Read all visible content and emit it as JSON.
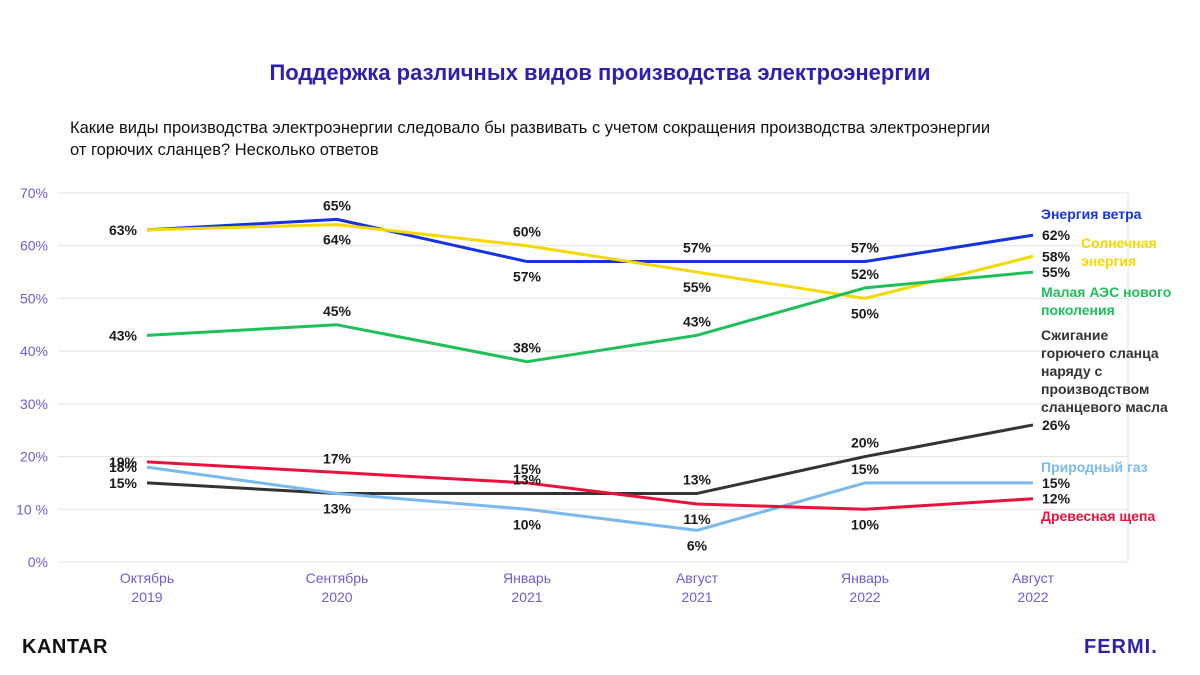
{
  "title": "Поддержка различных видов производства электроэнергии",
  "question_line1": "Какие виды производства электроэнергии следовало бы развивать с учетом сокращения производства электроэнергии",
  "question_line2": "от горючих сланцев?  Несколько ответов",
  "brands": {
    "left": "KANTAR",
    "right": "FERMI."
  },
  "chart_data": {
    "type": "line",
    "categories": [
      [
        "Октябрь",
        "2019"
      ],
      [
        "Сентябрь",
        "2020"
      ],
      [
        "Январь",
        "2021"
      ],
      [
        "Август",
        "2021"
      ],
      [
        "Январь",
        "2022"
      ],
      [
        "Август",
        "2022"
      ]
    ],
    "ylim": [
      0,
      70
    ],
    "yticks": [
      "0%",
      "10 %",
      "20%",
      "30%",
      "40%",
      "50%",
      "60%",
      "70%"
    ],
    "grid": true,
    "legend_placement": "right",
    "series": [
      {
        "name": "Энергия ветра",
        "color": "#1533e0",
        "values": [
          63,
          65,
          57,
          57,
          57,
          62
        ],
        "labels": [
          "63%",
          "65%",
          "57%",
          "57%",
          "57%",
          "62%"
        ],
        "label_pos": [
          "left",
          "above",
          "below",
          "above",
          "above",
          "end"
        ],
        "legend": [
          "Энергия ветра"
        ]
      },
      {
        "name": "Солнечная энергия",
        "color": "#f5d800",
        "values": [
          63,
          64,
          60,
          55,
          50,
          58
        ],
        "labels": [
          "",
          "64%",
          "60%",
          "55%",
          "50%",
          "58%"
        ],
        "label_pos": [
          "none",
          "below",
          "above",
          "below",
          "below",
          "end"
        ],
        "legend": [
          "Солнечная",
          "энергия"
        ]
      },
      {
        "name": "Малая АЭС нового поколения",
        "color": "#1fbf5a",
        "values": [
          43,
          45,
          38,
          43,
          52,
          55
        ],
        "labels": [
          "43%",
          "45%",
          "38%",
          "43%",
          "52%",
          "55%"
        ],
        "label_pos": [
          "left",
          "above",
          "above",
          "above",
          "above",
          "end"
        ],
        "legend": [
          "Малая АЭС нового",
          "поколения"
        ]
      },
      {
        "name": "Сжигание горючего сланца наряду с производством сланцевого масла",
        "color": "#333333",
        "values": [
          15,
          13,
          13,
          13,
          20,
          26
        ],
        "labels": [
          "15%",
          "13%",
          "13%",
          "13%",
          "20%",
          "26%"
        ],
        "label_pos": [
          "left",
          "below",
          "above",
          "above",
          "above",
          "end"
        ],
        "legend": [
          "Сжигание",
          "горючего сланца",
          "наряду с",
          "производством",
          "сланцевого масла"
        ]
      },
      {
        "name": "Природный газ",
        "color": "#7ab8ee",
        "values": [
          18,
          13,
          10,
          6,
          15,
          15
        ],
        "labels": [
          "18%",
          "",
          "10%",
          "6%",
          "15%",
          "15%"
        ],
        "label_pos": [
          "left",
          "none",
          "below",
          "below",
          "above",
          "end"
        ],
        "legend": [
          "Природный газ"
        ]
      },
      {
        "name": "Древесная щепа",
        "color": "#e8123c",
        "values": [
          19,
          17,
          15,
          11,
          10,
          12
        ],
        "labels": [
          "19%",
          "17%",
          "15%",
          "11%",
          "10%",
          "12%"
        ],
        "label_pos": [
          "left",
          "above",
          "above",
          "below",
          "below",
          "end"
        ],
        "legend": [
          "Древесная щепа"
        ]
      }
    ]
  }
}
